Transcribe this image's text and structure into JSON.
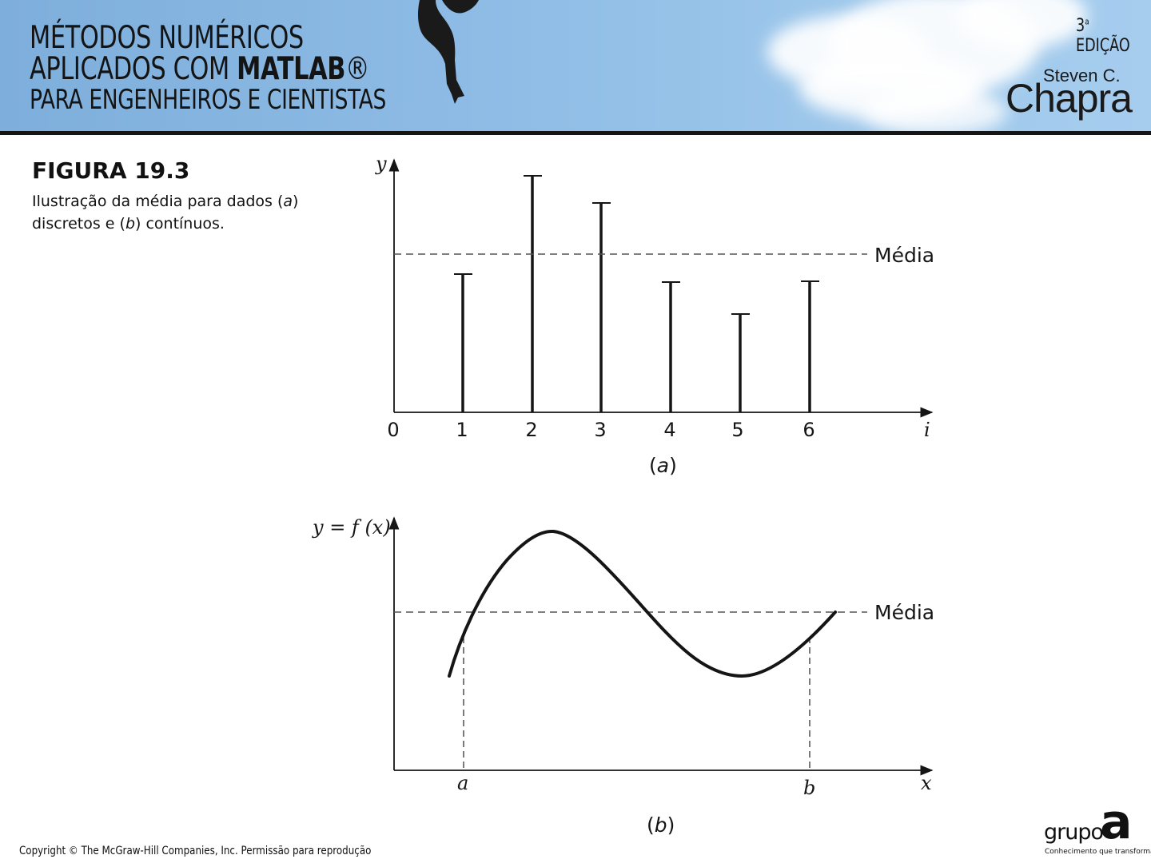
{
  "header": {
    "title_line1": "MÉTODOS NUMÉRICOS",
    "title_line2_prefix": "APLICADOS COM ",
    "title_line2_bold": "MATLAB",
    "title_line2_reg": "®",
    "title_line3": "PARA ENGENHEIROS E CIENTISTAS",
    "edition_number": "3",
    "edition_sup": "a",
    "edition_text": " EDIÇÃO",
    "author_first": "Steven C.",
    "author_last": "Chapra"
  },
  "caption": {
    "figure_number": "FIGURA 19.3",
    "text_part1": "Ilustração da média para dados (",
    "italic_a": "a",
    "text_part2": ") discretos e (",
    "italic_b": "b",
    "text_part3": ") contínuos."
  },
  "panel_a": {
    "y_axis_label": "y",
    "x_axis_label": "i",
    "x_ticks": [
      "0",
      "1",
      "2",
      "3",
      "4",
      "5",
      "6"
    ],
    "mean_label": "Média",
    "panel_label_open": "(",
    "panel_label_letter": "a",
    "panel_label_close": ")"
  },
  "panel_b": {
    "y_axis_label": "y = f (x)",
    "x_axis_label": "x",
    "limit_a_label": "a",
    "limit_b_label": "b",
    "mean_label": "Média",
    "panel_label_open": "(",
    "panel_label_letter": "b",
    "panel_label_close": ")"
  },
  "footer": {
    "copyright": "Copyright © The McGraw-Hill Companies, Inc. Permissão para reprodução",
    "logo_word": "grupo",
    "logo_letter": "a",
    "logo_tagline": "Conhecimento que transforma."
  },
  "colors": {
    "banner": "#8dbbe5",
    "ink": "#151515"
  }
}
